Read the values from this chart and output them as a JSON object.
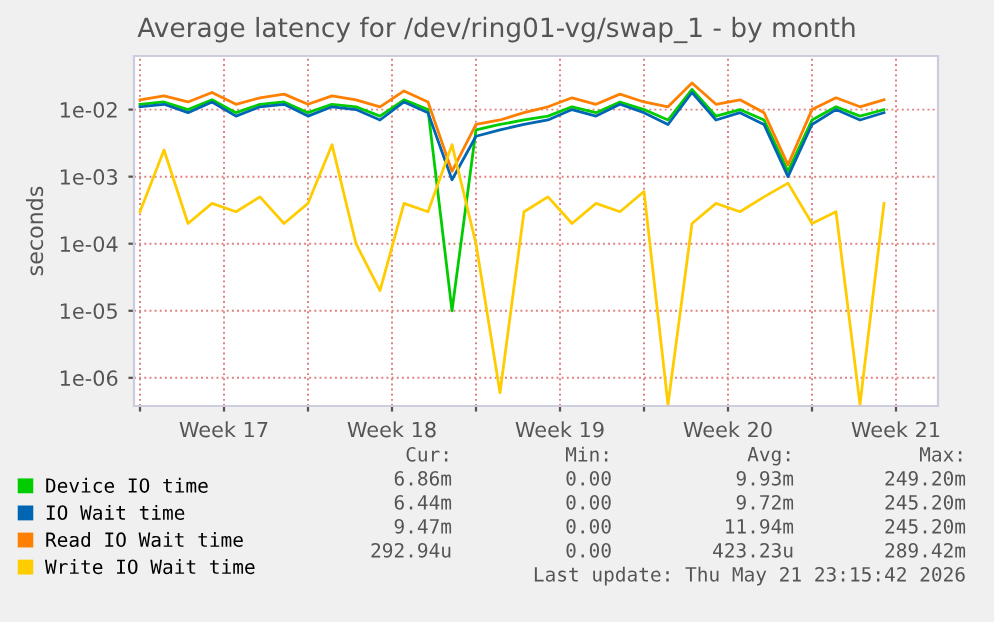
{
  "chart_data": {
    "type": "line",
    "title": "Average latency for /dev/ring01-vg/swap_1 - by month",
    "ylabel": "seconds",
    "log": "y",
    "grid": true,
    "legend": "bottom",
    "marker": "none",
    "line_style": "solid",
    "x": [
      "2026-04-20",
      "2026-04-21",
      "2026-04-22",
      "2026-04-23",
      "2026-04-24",
      "2026-04-25",
      "2026-04-26",
      "2026-04-27",
      "2026-04-28",
      "2026-04-29",
      "2026-04-30",
      "2026-05-01",
      "2026-05-02",
      "2026-05-03",
      "2026-05-04",
      "2026-05-05",
      "2026-05-06",
      "2026-05-07",
      "2026-05-08",
      "2026-05-09",
      "2026-05-10",
      "2026-05-11",
      "2026-05-12",
      "2026-05-13",
      "2026-05-14",
      "2026-05-15",
      "2026-05-16",
      "2026-05-17",
      "2026-05-18",
      "2026-05-19",
      "2026-05-20",
      "2026-05-21"
    ],
    "xlim": [
      "2026-04-19T18:00",
      "2026-05-23T06:00"
    ],
    "xticks": [
      {
        "value": "2026-04-20",
        "label": null
      },
      {
        "value": "2026-04-23T12:00",
        "label": "Week 17"
      },
      {
        "value": "2026-04-27",
        "label": null
      },
      {
        "value": "2026-04-30T12:00",
        "label": "Week 18"
      },
      {
        "value": "2026-05-04",
        "label": null
      },
      {
        "value": "2026-05-07T12:00",
        "label": "Week 19"
      },
      {
        "value": "2026-05-11",
        "label": null
      },
      {
        "value": "2026-05-14T12:00",
        "label": "Week 20"
      },
      {
        "value": "2026-05-18",
        "label": null
      },
      {
        "value": "2026-05-21T12:00",
        "label": "Week 21"
      }
    ],
    "ylim": [
      3.8e-07,
      0.063
    ],
    "yticks": [
      {
        "value": 1e-06,
        "label": "1e-06"
      },
      {
        "value": 1e-05,
        "label": "1e-05"
      },
      {
        "value": 0.0001,
        "label": "1e-04"
      },
      {
        "value": 0.001,
        "label": "1e-03"
      },
      {
        "value": 0.01,
        "label": "1e-02"
      }
    ],
    "series": [
      {
        "name": "Device IO time",
        "color": "#00cc00",
        "values": [
          0.012,
          0.013,
          0.01,
          0.014,
          0.009,
          0.012,
          0.013,
          0.009,
          0.012,
          0.011,
          0.008,
          0.014,
          0.01,
          1e-05,
          0.005,
          0.006,
          0.007,
          0.008,
          0.011,
          0.009,
          0.013,
          0.01,
          0.007,
          0.02,
          0.008,
          0.01,
          0.007,
          0.0012,
          0.007,
          0.011,
          0.008,
          0.01
        ]
      },
      {
        "name": "IO Wait time",
        "color": "#0066b3",
        "values": [
          0.011,
          0.012,
          0.009,
          0.013,
          0.008,
          0.011,
          0.012,
          0.008,
          0.011,
          0.01,
          0.007,
          0.013,
          0.009,
          0.0009,
          0.004,
          0.005,
          0.006,
          0.007,
          0.01,
          0.008,
          0.012,
          0.009,
          0.006,
          0.018,
          0.007,
          0.009,
          0.006,
          0.001,
          0.006,
          0.01,
          0.007,
          0.009
        ]
      },
      {
        "name": "Read IO Wait time",
        "color": "#ff8000",
        "values": [
          0.014,
          0.016,
          0.013,
          0.018,
          0.012,
          0.015,
          0.017,
          0.012,
          0.016,
          0.014,
          0.011,
          0.019,
          0.013,
          0.0012,
          0.006,
          0.007,
          0.009,
          0.011,
          0.015,
          0.012,
          0.017,
          0.013,
          0.011,
          0.025,
          0.012,
          0.014,
          0.009,
          0.0015,
          0.01,
          0.015,
          0.011,
          0.014
        ]
      },
      {
        "name": "Write IO Wait time",
        "color": "#ffcc00",
        "values": [
          0.0003,
          0.0025,
          0.0002,
          0.0004,
          0.0003,
          0.0005,
          0.0002,
          0.0004,
          0.003,
          0.0001,
          2e-05,
          0.0004,
          0.0003,
          0.003,
          0.0001,
          6e-07,
          0.0003,
          0.0005,
          0.0002,
          0.0004,
          0.0003,
          0.0006,
          4e-07,
          0.0002,
          0.0004,
          0.0003,
          0.0005,
          0.0008,
          0.0002,
          0.0003,
          4e-07,
          0.0004
        ]
      }
    ],
    "annotations": [
      "Cur:",
      "Min:",
      "Avg:",
      "Max:",
      "6.86m",
      "0.00",
      "9.93m",
      "249.20m",
      "6.44m",
      "0.00",
      "9.72m",
      "245.20m",
      "9.47m",
      "0.00",
      "11.94m",
      "245.20m",
      "292.94u",
      "0.00",
      "423.23u",
      "289.42m",
      "Last update: Thu May 21 23:15:42 2026"
    ]
  }
}
